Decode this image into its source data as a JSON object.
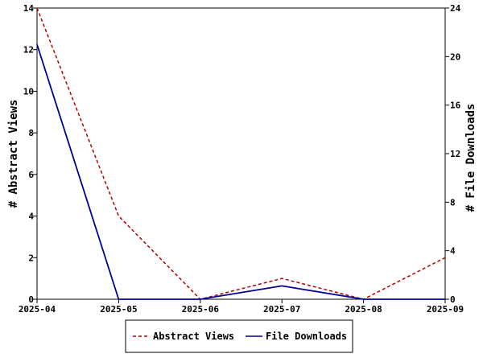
{
  "chart_data": {
    "type": "line",
    "categories": [
      "2025-04",
      "2025-05",
      "2025-06",
      "2025-07",
      "2025-08",
      "2025-09"
    ],
    "series": [
      {
        "name": "Abstract Views",
        "axis": "left",
        "values": [
          14,
          4,
          0,
          1,
          0,
          2
        ],
        "color": "#b30000",
        "dash": "dashed"
      },
      {
        "name": "File Downloads",
        "axis": "right",
        "values": [
          21,
          0,
          0,
          1.1,
          0,
          0
        ],
        "color": "#000099",
        "dash": "solid"
      }
    ],
    "ylabel_left": "# Abstract Views",
    "ylabel_right": "# File Downloads",
    "ylim_left": [
      0,
      14
    ],
    "ylim_right": [
      0,
      24
    ],
    "yticks_left": [
      "0",
      "2",
      "4",
      "6",
      "8",
      "10",
      "12",
      "14"
    ],
    "yticks_right": [
      "0",
      "4",
      "8",
      "12",
      "16",
      "20",
      "24"
    ],
    "grid": false,
    "legend_position": "bottom-center"
  }
}
